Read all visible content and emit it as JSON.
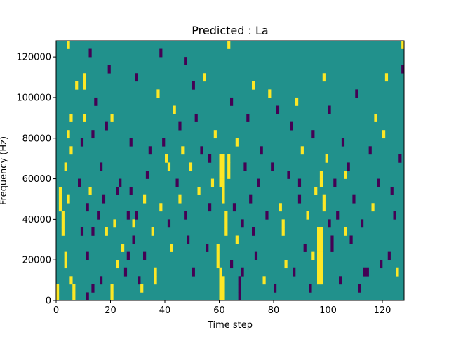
{
  "chart_data": {
    "type": "heatmap",
    "title": "Predicted : La",
    "xlabel": "Time step",
    "ylabel": "Frequency (Hz)",
    "xlim": [
      0,
      128
    ],
    "ylim": [
      0,
      128000
    ],
    "x_ticks": [
      0,
      20,
      40,
      60,
      80,
      100,
      120
    ],
    "x_tick_labels": [
      "0",
      "20",
      "40",
      "60",
      "80",
      "100",
      "120"
    ],
    "y_ticks": [
      0,
      20000,
      40000,
      60000,
      80000,
      100000,
      120000
    ],
    "y_tick_labels": [
      "0",
      "20000",
      "40000",
      "60000",
      "80000",
      "100000",
      "120000"
    ],
    "rows": 32,
    "row_height_hz": 4000,
    "grid": false,
    "colors": {
      "background": "#21918c",
      "high": "#fde725",
      "low": "#440154"
    },
    "cells": [
      {
        "t": 0,
        "r": 0,
        "v": "high"
      },
      {
        "t": 0,
        "r": 1,
        "v": "high"
      },
      {
        "t": 1,
        "r": 11,
        "v": "high"
      },
      {
        "t": 1,
        "r": 12,
        "v": "high"
      },
      {
        "t": 1,
        "r": 13,
        "v": "high"
      },
      {
        "t": 2,
        "r": 8,
        "v": "high"
      },
      {
        "t": 2,
        "r": 9,
        "v": "high"
      },
      {
        "t": 2,
        "r": 10,
        "v": "high"
      },
      {
        "t": 3,
        "r": 4,
        "v": "high"
      },
      {
        "t": 3,
        "r": 5,
        "v": "high"
      },
      {
        "t": 3,
        "r": 16,
        "v": "high"
      },
      {
        "t": 4,
        "r": 12,
        "v": "high"
      },
      {
        "t": 4,
        "r": 20,
        "v": "high"
      },
      {
        "t": 4,
        "r": 31,
        "v": "high"
      },
      {
        "t": 5,
        "r": 2,
        "v": "high"
      },
      {
        "t": 5,
        "r": 18,
        "v": "high"
      },
      {
        "t": 5,
        "r": 22,
        "v": "high"
      },
      {
        "t": 6,
        "r": 0,
        "v": "high"
      },
      {
        "t": 6,
        "r": 1,
        "v": "high"
      },
      {
        "t": 7,
        "r": 26,
        "v": "high"
      },
      {
        "t": 8,
        "r": 14,
        "v": "low"
      },
      {
        "t": 9,
        "r": 19,
        "v": "low"
      },
      {
        "t": 9,
        "r": 8,
        "v": "low"
      },
      {
        "t": 10,
        "r": 22,
        "v": "high"
      },
      {
        "t": 10,
        "r": 26,
        "v": "high"
      },
      {
        "t": 10,
        "r": 27,
        "v": "high"
      },
      {
        "t": 11,
        "r": 0,
        "v": "low"
      },
      {
        "t": 11,
        "r": 5,
        "v": "low"
      },
      {
        "t": 11,
        "r": 11,
        "v": "low"
      },
      {
        "t": 12,
        "r": 13,
        "v": "high"
      },
      {
        "t": 12,
        "r": 30,
        "v": "low"
      },
      {
        "t": 13,
        "r": 1,
        "v": "low"
      },
      {
        "t": 13,
        "r": 8,
        "v": "low"
      },
      {
        "t": 13,
        "r": 20,
        "v": "low"
      },
      {
        "t": 14,
        "r": 24,
        "v": "low"
      },
      {
        "t": 15,
        "r": 10,
        "v": "low"
      },
      {
        "t": 16,
        "r": 2,
        "v": "low"
      },
      {
        "t": 16,
        "r": 16,
        "v": "low"
      },
      {
        "t": 17,
        "r": 12,
        "v": "low"
      },
      {
        "t": 18,
        "r": 8,
        "v": "high"
      },
      {
        "t": 18,
        "r": 21,
        "v": "low"
      },
      {
        "t": 19,
        "r": 28,
        "v": "low"
      },
      {
        "t": 20,
        "r": 0,
        "v": "high"
      },
      {
        "t": 20,
        "r": 1,
        "v": "high"
      },
      {
        "t": 20,
        "r": 22,
        "v": "high"
      },
      {
        "t": 21,
        "r": 9,
        "v": "high"
      },
      {
        "t": 22,
        "r": 4,
        "v": "high"
      },
      {
        "t": 22,
        "r": 13,
        "v": "low"
      },
      {
        "t": 23,
        "r": 14,
        "v": "low"
      },
      {
        "t": 24,
        "r": 6,
        "v": "high"
      },
      {
        "t": 25,
        "r": 3,
        "v": "low"
      },
      {
        "t": 26,
        "r": 10,
        "v": "low"
      },
      {
        "t": 26,
        "r": 5,
        "v": "low"
      },
      {
        "t": 27,
        "r": 13,
        "v": "low"
      },
      {
        "t": 27,
        "r": 19,
        "v": "low"
      },
      {
        "t": 28,
        "r": 7,
        "v": "low"
      },
      {
        "t": 28,
        "r": 9,
        "v": "high"
      },
      {
        "t": 29,
        "r": 10,
        "v": "low"
      },
      {
        "t": 29,
        "r": 27,
        "v": "low"
      },
      {
        "t": 30,
        "r": 2,
        "v": "low"
      },
      {
        "t": 31,
        "r": 1,
        "v": "high"
      },
      {
        "t": 32,
        "r": 5,
        "v": "low"
      },
      {
        "t": 32,
        "r": 12,
        "v": "high"
      },
      {
        "t": 33,
        "r": 15,
        "v": "low"
      },
      {
        "t": 34,
        "r": 18,
        "v": "low"
      },
      {
        "t": 35,
        "r": 8,
        "v": "high"
      },
      {
        "t": 36,
        "r": 2,
        "v": "high"
      },
      {
        "t": 36,
        "r": 3,
        "v": "high"
      },
      {
        "t": 37,
        "r": 25,
        "v": "high"
      },
      {
        "t": 38,
        "r": 11,
        "v": "high"
      },
      {
        "t": 38,
        "r": 30,
        "v": "low"
      },
      {
        "t": 39,
        "r": 19,
        "v": "low"
      },
      {
        "t": 40,
        "r": 17,
        "v": "high"
      },
      {
        "t": 41,
        "r": 9,
        "v": "low"
      },
      {
        "t": 41,
        "r": 16,
        "v": "high"
      },
      {
        "t": 42,
        "r": 6,
        "v": "high"
      },
      {
        "t": 43,
        "r": 23,
        "v": "high"
      },
      {
        "t": 44,
        "r": 14,
        "v": "low"
      },
      {
        "t": 45,
        "r": 12,
        "v": "high"
      },
      {
        "t": 45,
        "r": 21,
        "v": "low"
      },
      {
        "t": 46,
        "r": 18,
        "v": "high"
      },
      {
        "t": 47,
        "r": 10,
        "v": "low"
      },
      {
        "t": 47,
        "r": 29,
        "v": "low"
      },
      {
        "t": 48,
        "r": 7,
        "v": "low"
      },
      {
        "t": 49,
        "r": 16,
        "v": "high"
      },
      {
        "t": 50,
        "r": 3,
        "v": "low"
      },
      {
        "t": 50,
        "r": 26,
        "v": "low"
      },
      {
        "t": 51,
        "r": 22,
        "v": "low"
      },
      {
        "t": 52,
        "r": 13,
        "v": "high"
      },
      {
        "t": 53,
        "r": 18,
        "v": "low"
      },
      {
        "t": 54,
        "r": 27,
        "v": "high"
      },
      {
        "t": 55,
        "r": 6,
        "v": "low"
      },
      {
        "t": 56,
        "r": 11,
        "v": "low"
      },
      {
        "t": 56,
        "r": 17,
        "v": "low"
      },
      {
        "t": 57,
        "r": 14,
        "v": "high"
      },
      {
        "t": 58,
        "r": 20,
        "v": "high"
      },
      {
        "t": 59,
        "r": 4,
        "v": "high"
      },
      {
        "t": 59,
        "r": 5,
        "v": "high"
      },
      {
        "t": 59,
        "r": 6,
        "v": "high"
      },
      {
        "t": 60,
        "r": 0,
        "v": "high"
      },
      {
        "t": 60,
        "r": 1,
        "v": "high"
      },
      {
        "t": 60,
        "r": 2,
        "v": "high"
      },
      {
        "t": 60,
        "r": 3,
        "v": "high"
      },
      {
        "t": 60,
        "r": 14,
        "v": "high"
      },
      {
        "t": 60,
        "r": 15,
        "v": "high"
      },
      {
        "t": 60,
        "r": 16,
        "v": "high"
      },
      {
        "t": 60,
        "r": 17,
        "v": "high"
      },
      {
        "t": 61,
        "r": 0,
        "v": "high"
      },
      {
        "t": 61,
        "r": 1,
        "v": "high"
      },
      {
        "t": 61,
        "r": 2,
        "v": "high"
      },
      {
        "t": 61,
        "r": 12,
        "v": "high"
      },
      {
        "t": 61,
        "r": 13,
        "v": "high"
      },
      {
        "t": 61,
        "r": 14,
        "v": "high"
      },
      {
        "t": 61,
        "r": 15,
        "v": "high"
      },
      {
        "t": 61,
        "r": 16,
        "v": "high"
      },
      {
        "t": 61,
        "r": 17,
        "v": "high"
      },
      {
        "t": 62,
        "r": 8,
        "v": "high"
      },
      {
        "t": 62,
        "r": 9,
        "v": "high"
      },
      {
        "t": 62,
        "r": 10,
        "v": "high"
      },
      {
        "t": 63,
        "r": 15,
        "v": "high"
      },
      {
        "t": 63,
        "r": 16,
        "v": "high"
      },
      {
        "t": 63,
        "r": 17,
        "v": "high"
      },
      {
        "t": 63,
        "r": 31,
        "v": "high"
      },
      {
        "t": 64,
        "r": 4,
        "v": "low"
      },
      {
        "t": 64,
        "r": 24,
        "v": "low"
      },
      {
        "t": 65,
        "r": 11,
        "v": "low"
      },
      {
        "t": 66,
        "r": 7,
        "v": "high"
      },
      {
        "t": 66,
        "r": 19,
        "v": "high"
      },
      {
        "t": 67,
        "r": 0,
        "v": "low"
      },
      {
        "t": 67,
        "r": 1,
        "v": "low"
      },
      {
        "t": 67,
        "r": 2,
        "v": "low"
      },
      {
        "t": 68,
        "r": 9,
        "v": "low"
      },
      {
        "t": 68,
        "r": 3,
        "v": "low"
      },
      {
        "t": 69,
        "r": 16,
        "v": "low"
      },
      {
        "t": 70,
        "r": 22,
        "v": "low"
      },
      {
        "t": 71,
        "r": 12,
        "v": "low"
      },
      {
        "t": 72,
        "r": 8,
        "v": "low"
      },
      {
        "t": 72,
        "r": 26,
        "v": "high"
      },
      {
        "t": 73,
        "r": 5,
        "v": "low"
      },
      {
        "t": 74,
        "r": 14,
        "v": "low"
      },
      {
        "t": 75,
        "r": 18,
        "v": "low"
      },
      {
        "t": 76,
        "r": 2,
        "v": "high"
      },
      {
        "t": 77,
        "r": 10,
        "v": "low"
      },
      {
        "t": 78,
        "r": 25,
        "v": "high"
      },
      {
        "t": 79,
        "r": 16,
        "v": "low"
      },
      {
        "t": 80,
        "r": 1,
        "v": "low"
      },
      {
        "t": 81,
        "r": 23,
        "v": "low"
      },
      {
        "t": 82,
        "r": 11,
        "v": "high"
      },
      {
        "t": 83,
        "r": 8,
        "v": "high"
      },
      {
        "t": 83,
        "r": 9,
        "v": "high"
      },
      {
        "t": 84,
        "r": 4,
        "v": "high"
      },
      {
        "t": 85,
        "r": 15,
        "v": "low"
      },
      {
        "t": 86,
        "r": 21,
        "v": "low"
      },
      {
        "t": 87,
        "r": 3,
        "v": "low"
      },
      {
        "t": 88,
        "r": 24,
        "v": "high"
      },
      {
        "t": 89,
        "r": 14,
        "v": "low"
      },
      {
        "t": 89,
        "r": 12,
        "v": "low"
      },
      {
        "t": 90,
        "r": 18,
        "v": "high"
      },
      {
        "t": 91,
        "r": 6,
        "v": "low"
      },
      {
        "t": 92,
        "r": 10,
        "v": "high"
      },
      {
        "t": 93,
        "r": 1,
        "v": "low"
      },
      {
        "t": 94,
        "r": 20,
        "v": "low"
      },
      {
        "t": 94,
        "r": 5,
        "v": "high"
      },
      {
        "t": 95,
        "r": 13,
        "v": "high"
      },
      {
        "t": 96,
        "r": 2,
        "v": "high"
      },
      {
        "t": 96,
        "r": 3,
        "v": "high"
      },
      {
        "t": 96,
        "r": 4,
        "v": "high"
      },
      {
        "t": 96,
        "r": 5,
        "v": "high"
      },
      {
        "t": 96,
        "r": 6,
        "v": "high"
      },
      {
        "t": 96,
        "r": 7,
        "v": "high"
      },
      {
        "t": 96,
        "r": 8,
        "v": "high"
      },
      {
        "t": 97,
        "r": 2,
        "v": "high"
      },
      {
        "t": 97,
        "r": 3,
        "v": "high"
      },
      {
        "t": 97,
        "r": 4,
        "v": "high"
      },
      {
        "t": 97,
        "r": 5,
        "v": "high"
      },
      {
        "t": 97,
        "r": 6,
        "v": "high"
      },
      {
        "t": 97,
        "r": 7,
        "v": "high"
      },
      {
        "t": 97,
        "r": 8,
        "v": "high"
      },
      {
        "t": 97,
        "r": 14,
        "v": "high"
      },
      {
        "t": 97,
        "r": 15,
        "v": "high"
      },
      {
        "t": 98,
        "r": 11,
        "v": "high"
      },
      {
        "t": 98,
        "r": 12,
        "v": "high"
      },
      {
        "t": 98,
        "r": 27,
        "v": "high"
      },
      {
        "t": 99,
        "r": 17,
        "v": "high"
      },
      {
        "t": 100,
        "r": 9,
        "v": "low"
      },
      {
        "t": 100,
        "r": 23,
        "v": "low"
      },
      {
        "t": 101,
        "r": 6,
        "v": "low"
      },
      {
        "t": 101,
        "r": 7,
        "v": "low"
      },
      {
        "t": 102,
        "r": 14,
        "v": "low"
      },
      {
        "t": 103,
        "r": 10,
        "v": "low"
      },
      {
        "t": 104,
        "r": 2,
        "v": "low"
      },
      {
        "t": 105,
        "r": 19,
        "v": "low"
      },
      {
        "t": 106,
        "r": 8,
        "v": "high"
      },
      {
        "t": 106,
        "r": 15,
        "v": "high"
      },
      {
        "t": 107,
        "r": 16,
        "v": "low"
      },
      {
        "t": 108,
        "r": 7,
        "v": "low"
      },
      {
        "t": 109,
        "r": 12,
        "v": "low"
      },
      {
        "t": 110,
        "r": 25,
        "v": "low"
      },
      {
        "t": 111,
        "r": 1,
        "v": "low"
      },
      {
        "t": 112,
        "r": 9,
        "v": "low"
      },
      {
        "t": 113,
        "r": 3,
        "v": "low"
      },
      {
        "t": 114,
        "r": 3,
        "v": "low"
      },
      {
        "t": 115,
        "r": 18,
        "v": "low"
      },
      {
        "t": 116,
        "r": 11,
        "v": "high"
      },
      {
        "t": 117,
        "r": 22,
        "v": "high"
      },
      {
        "t": 118,
        "r": 14,
        "v": "low"
      },
      {
        "t": 119,
        "r": 4,
        "v": "low"
      },
      {
        "t": 120,
        "r": 20,
        "v": "high"
      },
      {
        "t": 121,
        "r": 27,
        "v": "high"
      },
      {
        "t": 122,
        "r": 5,
        "v": "low"
      },
      {
        "t": 123,
        "r": 13,
        "v": "low"
      },
      {
        "t": 124,
        "r": 10,
        "v": "low"
      },
      {
        "t": 125,
        "r": 3,
        "v": "high"
      },
      {
        "t": 126,
        "r": 17,
        "v": "low"
      },
      {
        "t": 127,
        "r": 28,
        "v": "low"
      },
      {
        "t": 127,
        "r": 31,
        "v": "high"
      }
    ]
  }
}
